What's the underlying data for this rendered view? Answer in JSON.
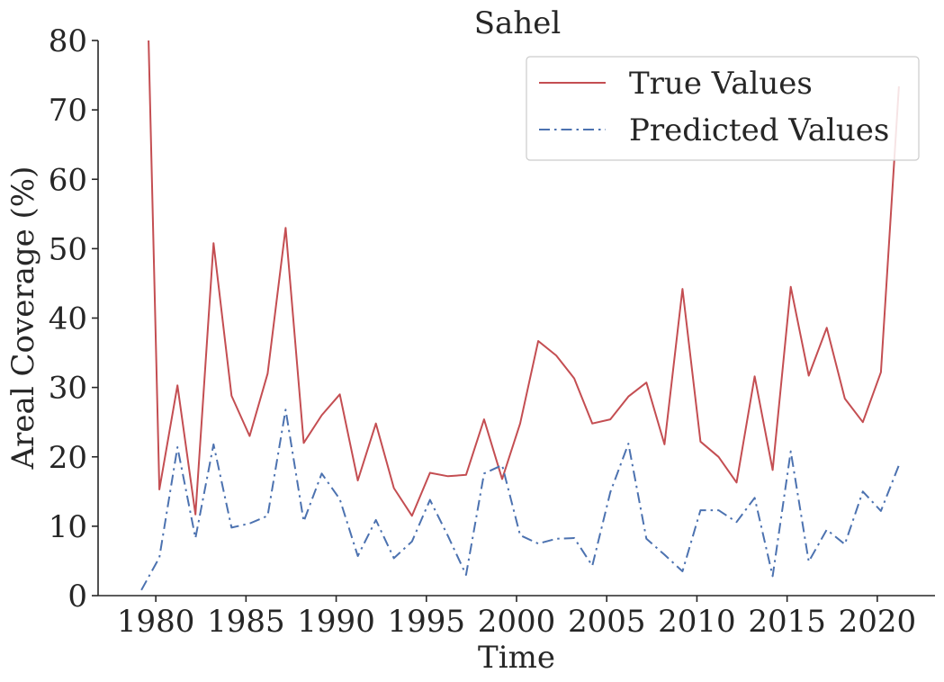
{
  "chart_data": {
    "type": "line",
    "title": "Sahel",
    "xlabel": "Time",
    "ylabel": "Areal Coverage (%)",
    "xlim": [
      1976.8,
      2023.2
    ],
    "ylim": [
      0,
      80
    ],
    "xticks": [
      1980,
      1985,
      1990,
      1995,
      2000,
      2005,
      2010,
      2015,
      2020
    ],
    "yticks": [
      0,
      10,
      20,
      30,
      40,
      50,
      60,
      70,
      80
    ],
    "grid": false,
    "legend_position": "top-right",
    "series": [
      {
        "name": "True Values",
        "color": "#c44e52",
        "style": "solid",
        "x": [
          1979.6,
          1980.2,
          1981.2,
          1982.2,
          1983.2,
          1984.2,
          1985.2,
          1986.2,
          1987.2,
          1988.2,
          1989.2,
          1990.2,
          1991.2,
          1992.2,
          1993.2,
          1994.2,
          1995.2,
          1996.2,
          1997.2,
          1998.2,
          1999.2,
          2000.2,
          2001.2,
          2002.2,
          2003.2,
          2004.2,
          2005.2,
          2006.2,
          2007.2,
          2008.2,
          2009.2,
          2010.2,
          2011.2,
          2012.2,
          2013.2,
          2014.2,
          2015.2,
          2016.2,
          2017.2,
          2018.2,
          2019.2,
          2020.2,
          2021.2
        ],
        "y": [
          80.0,
          15.3,
          30.3,
          11.7,
          50.8,
          28.8,
          23.0,
          32.0,
          53.0,
          22.0,
          26.0,
          29.0,
          16.6,
          24.8,
          15.5,
          11.5,
          17.7,
          17.2,
          17.4,
          25.4,
          16.8,
          24.8,
          36.7,
          34.6,
          31.3,
          24.8,
          25.4,
          28.7,
          30.7,
          21.8,
          44.2,
          22.2,
          20.0,
          16.3,
          31.6,
          18.1,
          44.5,
          31.7,
          38.6,
          28.4,
          25.0,
          32.2,
          73.4
        ]
      },
      {
        "name": "Predicted Values",
        "color": "#4c72b0",
        "style": "dashdot",
        "x": [
          1979.2,
          1980.2,
          1981.2,
          1982.2,
          1983.2,
          1984.2,
          1985.2,
          1986.2,
          1987.2,
          1988.2,
          1989.2,
          1990.2,
          1991.2,
          1992.2,
          1993.2,
          1994.2,
          1995.2,
          1996.2,
          1997.2,
          1998.2,
          1999.2,
          2000.2,
          2001.2,
          2002.2,
          2003.2,
          2004.2,
          2005.2,
          2006.2,
          2007.2,
          2008.2,
          2009.2,
          2010.2,
          2011.2,
          2012.2,
          2013.2,
          2014.2,
          2015.2,
          2016.2,
          2017.2,
          2018.2,
          2019.2,
          2020.2,
          2021.2
        ],
        "y": [
          0.8,
          5.5,
          21.4,
          8.3,
          21.8,
          9.8,
          10.4,
          11.5,
          26.8,
          10.7,
          17.6,
          13.9,
          5.7,
          10.9,
          5.4,
          7.8,
          13.8,
          8.6,
          3.0,
          17.6,
          18.8,
          8.7,
          7.5,
          8.2,
          8.3,
          4.3,
          14.9,
          21.9,
          8.2,
          5.9,
          3.5,
          12.3,
          12.3,
          10.6,
          14.1,
          2.8,
          20.8,
          4.9,
          9.5,
          7.4,
          15.0,
          12.2,
          18.8
        ]
      }
    ]
  }
}
